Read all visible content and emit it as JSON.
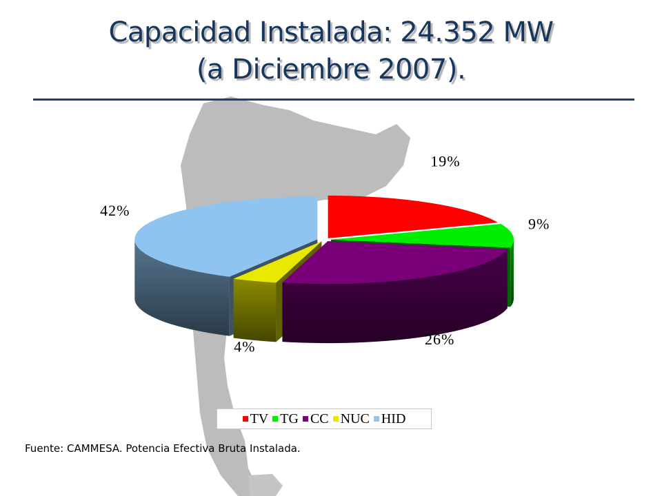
{
  "title": {
    "line1": "Capacidad Instalada: 24.352 MW",
    "line2": "(a Diciembre 2007)."
  },
  "chart_data": {
    "type": "pie",
    "style": "3d-exploded",
    "legend_position": "bottom",
    "categories": [
      "TV",
      "TG",
      "CC",
      "NUC",
      "HID"
    ],
    "values": [
      19,
      9,
      26,
      4,
      42
    ],
    "labels": [
      "19%",
      "9%",
      "26%",
      "4%",
      "42%"
    ],
    "unit": "%",
    "colors": [
      "#ff0000",
      "#00ee00",
      "#7a007a",
      "#e8e800",
      "#8fc4f0"
    ]
  },
  "source_note": "Fuente: CAMMESA. Potencia Efectiva Bruta Instalada."
}
